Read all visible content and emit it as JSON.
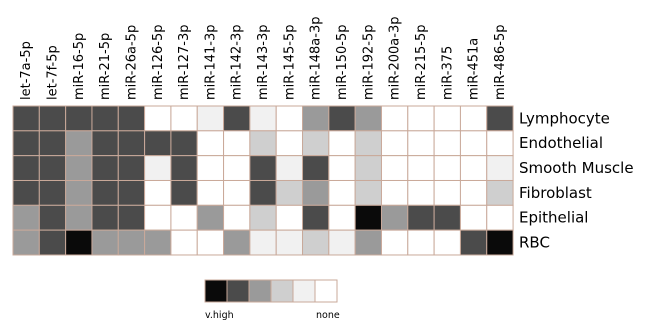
{
  "chart_data": {
    "type": "heatmap",
    "x_labels": [
      "let-7a-5p",
      "let-7f-5p",
      "miR-16-5p",
      "miR-21-5p",
      "miR-26a-5p",
      "miR-126-5p",
      "miR-127-3p",
      "miR-141-3p",
      "miR-142-3p",
      "miR-143-3p",
      "miR-145-5p",
      "miR-148a-3p",
      "miR-150-5p",
      "miR-192-5p",
      "miR-200a-3p",
      "miR-215-5p",
      "miR-375",
      "miR-451a",
      "miR-486-5p"
    ],
    "y_labels": [
      "Lymphocyte",
      "Endothelial",
      "Smooth Muscle",
      "Fibroblast",
      "Epithelial",
      "RBC"
    ],
    "levels": {
      "scale": [
        1,
        2,
        3,
        4,
        5,
        6
      ],
      "colors": [
        "#0a0a0a",
        "#4b4b4b",
        "#9a9a9a",
        "#cfcfcf",
        "#f1f1f1",
        "#ffffff"
      ],
      "min_label": "v.high",
      "max_label": "none"
    },
    "values": [
      [
        2,
        2,
        2,
        2,
        2,
        6,
        6,
        5,
        2,
        5,
        6,
        3,
        2,
        3,
        6,
        6,
        6,
        6,
        2
      ],
      [
        2,
        2,
        3,
        2,
        2,
        2,
        2,
        6,
        6,
        4,
        6,
        4,
        6,
        4,
        6,
        6,
        6,
        6,
        6
      ],
      [
        2,
        2,
        3,
        2,
        2,
        5,
        2,
        6,
        6,
        2,
        5,
        2,
        6,
        4,
        6,
        6,
        6,
        6,
        5
      ],
      [
        2,
        2,
        3,
        2,
        2,
        6,
        2,
        6,
        6,
        2,
        4,
        3,
        6,
        4,
        6,
        6,
        6,
        6,
        4
      ],
      [
        3,
        2,
        3,
        2,
        2,
        6,
        6,
        3,
        6,
        4,
        6,
        2,
        6,
        1,
        3,
        2,
        2,
        6,
        6
      ],
      [
        3,
        2,
        1,
        3,
        3,
        3,
        6,
        6,
        3,
        5,
        5,
        4,
        5,
        3,
        6,
        6,
        6,
        2,
        1
      ]
    ]
  }
}
